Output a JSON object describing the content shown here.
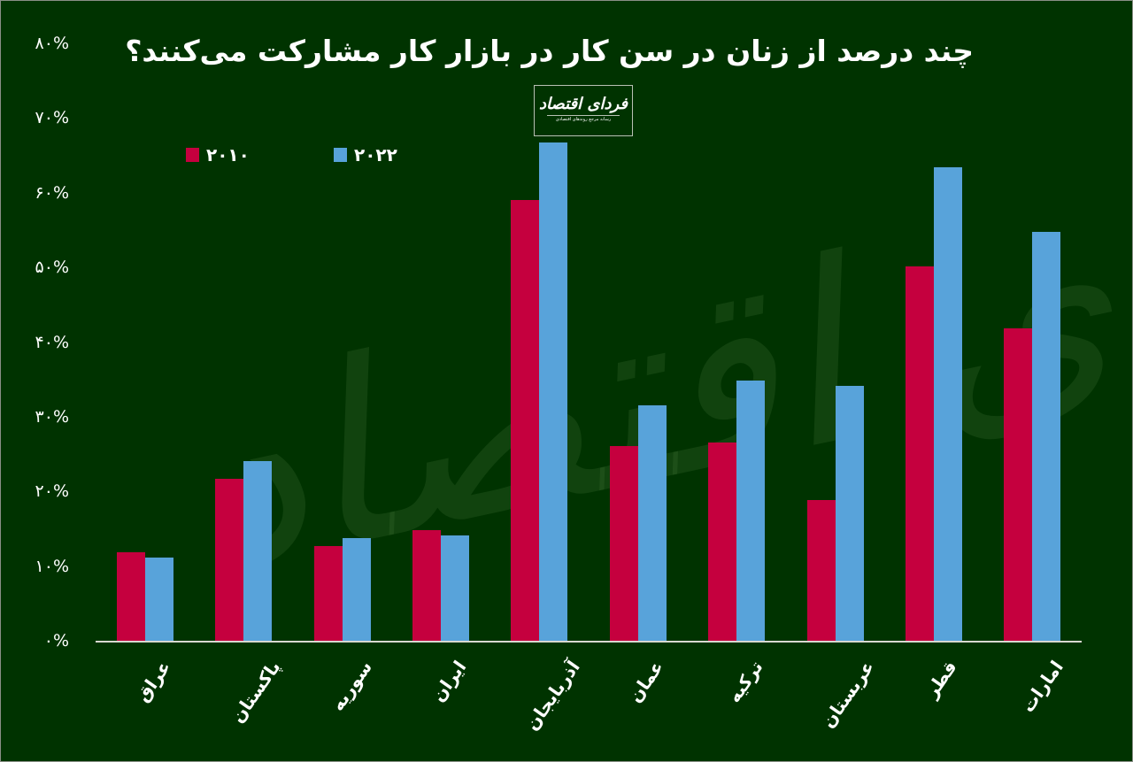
{
  "chart_data": {
    "type": "bar",
    "title": "چند درصد از زنان در سن کار در بازار کار مشارکت می‌کنند؟",
    "xlabel": "",
    "ylabel": "",
    "ylim": [
      0,
      80
    ],
    "y_ticks": [
      "۰%",
      "۱۰%",
      "۲۰%",
      "۳۰%",
      "۴۰%",
      "۵۰%",
      "۶۰%",
      "۷۰%",
      "۸۰%"
    ],
    "grid": false,
    "legend_position": "top-left",
    "categories": [
      "عراق",
      "پاکستان",
      "سوریه",
      "ایران",
      "آذربایجان",
      "عمان",
      "ترکیه",
      "عربستان",
      "قطر",
      "امارات"
    ],
    "series": [
      {
        "name": "۲۰۱۰",
        "color": "#c5003e",
        "values": [
          12.0,
          21.8,
          12.8,
          14.9,
          59.1,
          26.2,
          26.7,
          19.0,
          50.2,
          41.9
        ]
      },
      {
        "name": "۲۰۲۲",
        "color": "#58a3da",
        "values": [
          11.3,
          24.2,
          13.9,
          14.2,
          66.8,
          31.6,
          35.0,
          34.2,
          63.5,
          54.9
        ]
      }
    ]
  },
  "logo": {
    "main": "فردای اقتصاد",
    "sub": "رسانه مرجع روندهای اقتصادی"
  },
  "watermark": "فردای اقتصاد",
  "colors": {
    "background": "#003300",
    "series_2010": "#c5003e",
    "series_2022": "#58a3da",
    "text": "#ffffff"
  }
}
